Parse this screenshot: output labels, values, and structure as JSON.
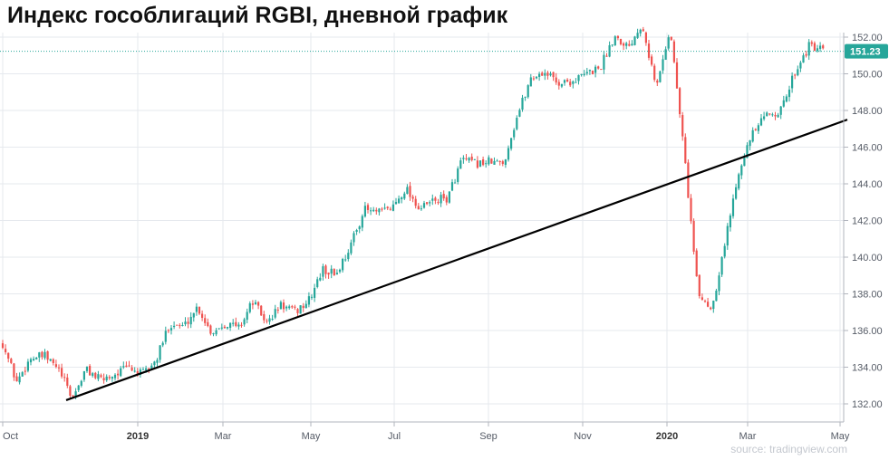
{
  "chart_data": {
    "type": "candlestick",
    "title": "Индекс гособлигаций RGBI, дневной график",
    "source": "source: tradingview.com",
    "y_axis": {
      "ticks": [
        "132.00",
        "134.00",
        "136.00",
        "138.00",
        "140.00",
        "142.00",
        "144.00",
        "146.00",
        "148.00",
        "150.00",
        "152.00"
      ],
      "range": [
        131.0,
        153.3
      ],
      "side": "right"
    },
    "x_axis": {
      "ticks": [
        {
          "label": "Oct",
          "bold": false
        },
        {
          "label": "2019",
          "bold": true
        },
        {
          "label": "Mar",
          "bold": false
        },
        {
          "label": "May",
          "bold": false
        },
        {
          "label": "Jul",
          "bold": false
        },
        {
          "label": "Sep",
          "bold": false
        },
        {
          "label": "Nov",
          "bold": false
        },
        {
          "label": "2020",
          "bold": true
        },
        {
          "label": "Mar",
          "bold": false
        },
        {
          "label": "May",
          "bold": false
        }
      ]
    },
    "last_price": "151.23",
    "colors": {
      "up": "#26a69a",
      "down": "#ef5350",
      "trendline": "#000000",
      "grid": "#e6e9ee",
      "last_price": "#26a69a"
    },
    "grid": true,
    "trendline": {
      "from_price": 132.2,
      "to_price": 147.5
    },
    "price_path": [
      {
        "p": 135.3
      },
      {
        "p": 133.2
      },
      {
        "p": 134.5
      },
      {
        "p": 134.6
      },
      {
        "p": 133.9
      },
      {
        "p": 132.3
      },
      {
        "p": 133.9
      },
      {
        "p": 133.3
      },
      {
        "p": 133.6
      },
      {
        "p": 134.0
      },
      {
        "p": 133.6
      },
      {
        "p": 134.3
      },
      {
        "p": 136.4
      },
      {
        "p": 136.2
      },
      {
        "p": 137.3
      },
      {
        "p": 135.9
      },
      {
        "p": 136.4
      },
      {
        "p": 136.2
      },
      {
        "p": 137.6
      },
      {
        "p": 136.4
      },
      {
        "p": 137.4
      },
      {
        "p": 137.0
      },
      {
        "p": 137.6
      },
      {
        "p": 139.3
      },
      {
        "p": 139.1
      },
      {
        "p": 140.6
      },
      {
        "p": 142.6
      },
      {
        "p": 142.4
      },
      {
        "p": 142.7
      },
      {
        "p": 143.8
      },
      {
        "p": 142.6
      },
      {
        "p": 143.1
      },
      {
        "p": 143.2
      },
      {
        "p": 145.3
      },
      {
        "p": 145.1
      },
      {
        "p": 145.2
      },
      {
        "p": 145.1
      },
      {
        "p": 147.7
      },
      {
        "p": 149.8
      },
      {
        "p": 150.1
      },
      {
        "p": 149.5
      },
      {
        "p": 149.6
      },
      {
        "p": 150.0
      },
      {
        "p": 150.4
      },
      {
        "p": 152.1
      },
      {
        "p": 151.5
      },
      {
        "p": 152.8
      },
      {
        "p": 149.2
      },
      {
        "p": 152.5
      },
      {
        "p": 145.8
      },
      {
        "p": 138.0
      },
      {
        "p": 137.2
      },
      {
        "p": 141.0
      },
      {
        "p": 145.0
      },
      {
        "p": 146.8
      },
      {
        "p": 147.8
      },
      {
        "p": 148.0
      },
      {
        "p": 150.2
      },
      {
        "p": 151.5
      },
      {
        "p": 151.23
      }
    ]
  }
}
